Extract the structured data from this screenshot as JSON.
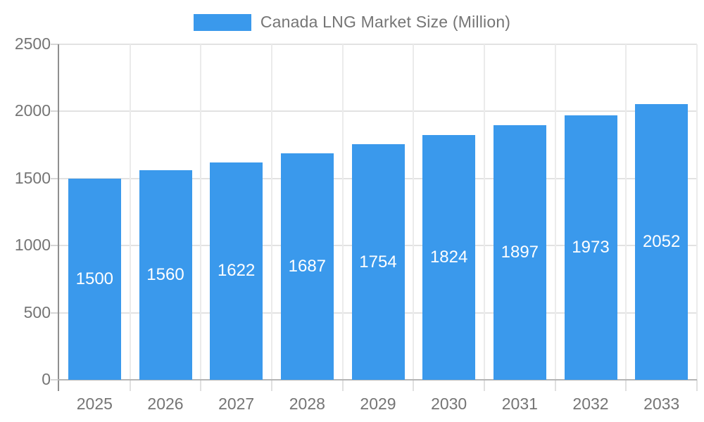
{
  "chart_data": {
    "type": "bar",
    "title": "Canada LNG Market Size (Million)",
    "categories": [
      "2025",
      "2026",
      "2027",
      "2028",
      "2029",
      "2030",
      "2031",
      "2032",
      "2033"
    ],
    "values": [
      1500,
      1560,
      1622,
      1687,
      1754,
      1824,
      1897,
      1973,
      2052
    ],
    "xlabel": "",
    "ylabel": "",
    "ylim": [
      0,
      2500
    ],
    "yticks": [
      0,
      500,
      1000,
      1500,
      2000,
      2500
    ],
    "grid": true,
    "legend_position": "top",
    "colors": {
      "bar": "#3a99ec",
      "bar_label": "#ffffff",
      "axis_text": "#757575",
      "gridline": "#e2e2e2",
      "axis_line": "#8f8f8f"
    }
  }
}
